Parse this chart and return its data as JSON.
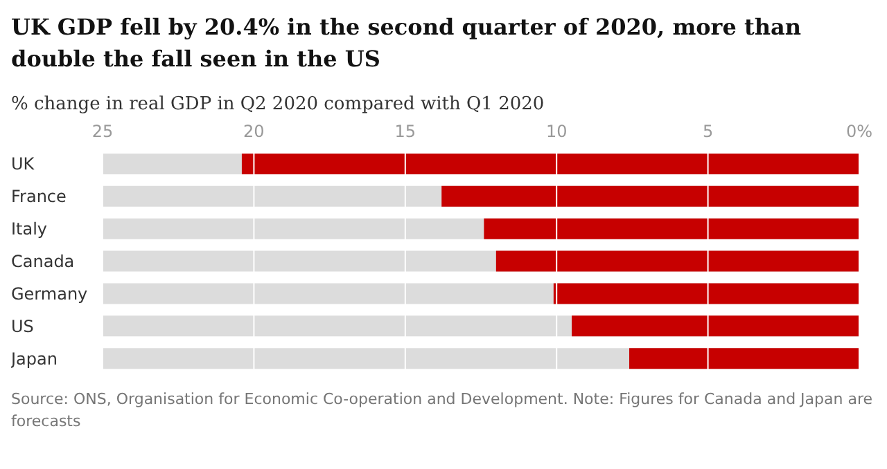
{
  "chart_data": {
    "type": "bar",
    "orientation": "horizontal",
    "title": "UK GDP fell by 20.4% in the second quarter of 2020, more than double the fall seen in the US",
    "subtitle": "% change in real GDP in Q2 2020 compared with Q1 2020",
    "categories": [
      "UK",
      "France",
      "Italy",
      "Canada",
      "Germany",
      "US",
      "Japan"
    ],
    "values": [
      20.4,
      13.8,
      12.4,
      12.0,
      10.1,
      9.5,
      7.6
    ],
    "color": "#c70000",
    "xlim": [
      25,
      0
    ],
    "xticks": [
      25,
      20,
      15,
      10,
      5,
      {
        "value": 0,
        "label": "0%"
      }
    ],
    "grid": "x",
    "annotations": [
      "Source: ONS, Organisation for Economic Co-operation and Development. Note: Figures for Canada and Japan are forecasts"
    ]
  }
}
